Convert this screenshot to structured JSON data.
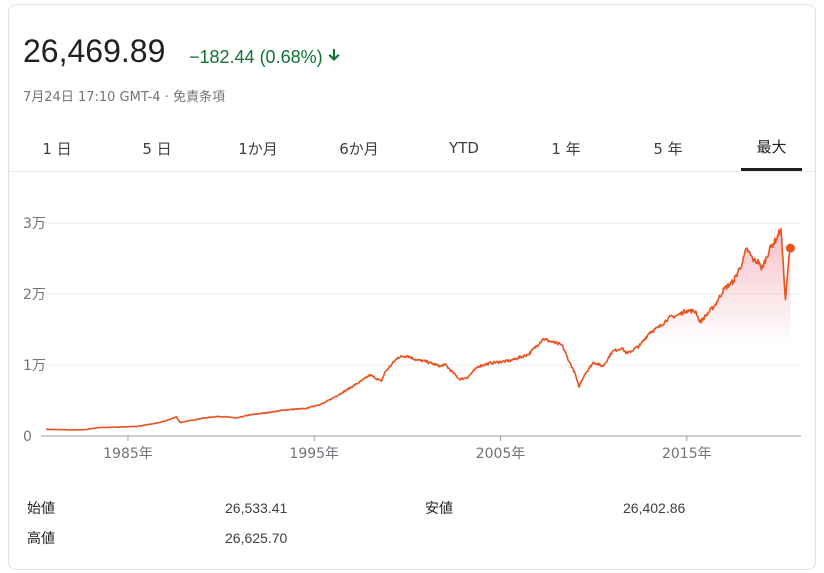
{
  "quote": {
    "price": "26,469.89",
    "change": "−182.44 (0.68%)",
    "change_arrow": "down-arrow-icon",
    "timestamp": "7月24日 17:10 GMT-4",
    "separator": "·",
    "disclaimer": "免責条項",
    "negative_color": "#137333"
  },
  "tabs": [
    {
      "label": "1 日"
    },
    {
      "label": "5 日"
    },
    {
      "label": "1か月"
    },
    {
      "label": "6か月"
    },
    {
      "label": "YTD"
    },
    {
      "label": "1 年"
    },
    {
      "label": "5 年"
    },
    {
      "label": "最大",
      "active": true
    }
  ],
  "stats": {
    "open_label": "始値",
    "open_value": "26,533.41",
    "low_label": "安値",
    "low_value": "26,402.86",
    "high_label": "高値",
    "high_value": "26,625.70"
  },
  "chart_data": {
    "type": "area",
    "title": "",
    "xlabel": "",
    "ylabel": "",
    "ylim": [
      0,
      30000
    ],
    "xlim": [
      1980.6,
      2020.7
    ],
    "yticks": [
      {
        "value": 0,
        "label": "0"
      },
      {
        "value": 10000,
        "label": "1万"
      },
      {
        "value": 20000,
        "label": "2万"
      },
      {
        "value": 30000,
        "label": "3万"
      }
    ],
    "xticks": [
      {
        "value": 1985,
        "label": "1985年"
      },
      {
        "value": 1995,
        "label": "1995年"
      },
      {
        "value": 2005,
        "label": "2005年"
      },
      {
        "value": 2015,
        "label": "2015年"
      }
    ],
    "grid": true,
    "line_color": "#e8531f",
    "fill_color": "#f3aab4",
    "series": [
      {
        "x": [
          1980.6,
          1982.0,
          1982.7,
          1983.5,
          1984.5,
          1985.5,
          1986.5,
          1987.0,
          1987.6,
          1987.8,
          1988.0,
          1989.0,
          1989.8,
          1990.5,
          1990.8,
          1991.5,
          1992.5,
          1993.5,
          1994.5,
          1995.5,
          1996.5,
          1997.5,
          1998.0,
          1998.6,
          1998.8,
          1999.5,
          2000.0,
          2000.5,
          2001.0,
          2001.8,
          2002.0,
          2002.8,
          2003.2,
          2003.8,
          2004.5,
          2005.5,
          2006.5,
          2007.3,
          2007.8,
          2008.3,
          2008.7,
          2009.0,
          2009.2,
          2009.5,
          2010.0,
          2010.5,
          2011.0,
          2011.5,
          2011.8,
          2012.5,
          2013.0,
          2013.5,
          2014.0,
          2014.5,
          2015.0,
          2015.5,
          2015.7,
          2016.0,
          2016.5,
          2017.0,
          2017.5,
          2018.0,
          2018.2,
          2018.6,
          2018.9,
          2019.0,
          2019.5,
          2019.8,
          2020.05,
          2020.2,
          2020.3,
          2020.45,
          2020.56
        ],
        "y": [
          950,
          850,
          900,
          1200,
          1250,
          1350,
          1800,
          2100,
          2700,
          1900,
          2000,
          2500,
          2750,
          2650,
          2500,
          2950,
          3300,
          3700,
          3850,
          4600,
          6100,
          7700,
          8600,
          7700,
          9000,
          11100,
          11300,
          10700,
          10500,
          9800,
          10100,
          8000,
          8200,
          9800,
          10300,
          10600,
          11500,
          13700,
          13200,
          12800,
          10400,
          8800,
          6900,
          8600,
          10400,
          9800,
          11900,
          12400,
          11600,
          12800,
          14600,
          15300,
          16600,
          17000,
          17700,
          17500,
          16000,
          16900,
          18400,
          20700,
          21800,
          24500,
          26400,
          24700,
          24500,
          23400,
          26600,
          27700,
          29200,
          23000,
          19200,
          24200,
          26470
        ]
      }
    ]
  }
}
